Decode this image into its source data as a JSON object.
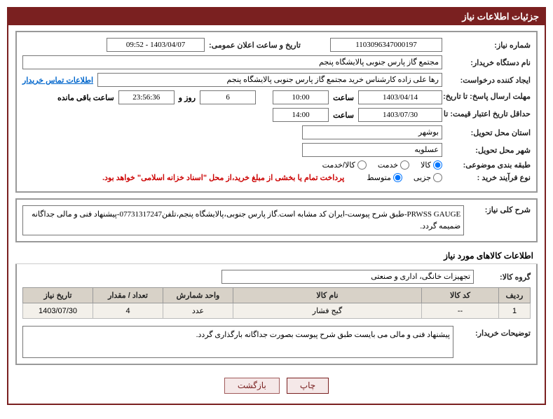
{
  "title": "جزئیات اطلاعات نیاز",
  "fields": {
    "need_no_label": "شماره نیاز:",
    "need_no": "1103096347000197",
    "announce_label": "تاریخ و ساعت اعلان عمومی:",
    "announce_value": "1403/04/07 - 09:52",
    "buyer_org_label": "نام دستگاه خریدار:",
    "buyer_org": "مجتمع گاز پارس جنوبی  پالایشگاه پنجم",
    "requester_label": "ایجاد کننده درخواست:",
    "requester": "رها علی زاده کارشناس خرید مجتمع گاز پارس جنوبی  پالایشگاه پنجم",
    "contact_link": "اطلاعات تماس خریدار",
    "deadline_label": "مهلت ارسال پاسخ: تا تاریخ:",
    "deadline_date": "1403/04/14",
    "hour_label": "ساعت",
    "deadline_hour": "10:00",
    "days_remain": "6",
    "days_remain_label": "روز و",
    "time_remain": "23:56:36",
    "time_remain_label": "ساعت باقی مانده",
    "validity_label": "حداقل تاریخ اعتبار قیمت: تا تاریخ:",
    "validity_date": "1403/07/30",
    "validity_hour": "14:00",
    "delivery_province_label": "استان محل تحویل:",
    "delivery_province": "بوشهر",
    "delivery_city_label": "شهر محل تحویل:",
    "delivery_city": "عسلویه",
    "category_label": "طبقه بندی موضوعی:",
    "cat_goods": "کالا",
    "cat_service": "خدمت",
    "cat_goods_service": "کالا/خدمت",
    "process_label": "نوع فرآیند خرید :",
    "proc_small": "جزیی",
    "proc_medium": "متوسط",
    "payment_note": "پرداخت تمام یا بخشی از مبلغ خرید،از محل \"اسناد خزانه اسلامی\" خواهد بود.",
    "summary_label": "شرح کلی نیاز:",
    "summary_text": "PRWSS GAUGE-طبق شرح پیوست-ایران کد مشابه است.گاز پارس جنوبی،پالایشگاه پنجم،تلفن07731317247-پیشنهاد فنی و مالی جداگانه ضمیمه گردد.",
    "goods_info_header": "اطلاعات کالاهای مورد نیاز",
    "goods_group_label": "گروه کالا:",
    "goods_group": "تجهیزات خانگی، اداری و صنعتی",
    "buyer_notes_label": "توضیحات خریدار:",
    "buyer_notes_text": "پیشنهاد فنی و مالی می بایست طبق شرح پیوست بصورت جداگانه بارگذاری گردد."
  },
  "table": {
    "headers": {
      "row": "ردیف",
      "code": "کد کالا",
      "name": "نام کالا",
      "unit": "واحد شمارش",
      "qty": "تعداد / مقدار",
      "date": "تاریخ نیاز"
    },
    "rows": [
      {
        "row": "1",
        "code": "--",
        "name": "گیج فشار",
        "unit": "عدد",
        "qty": "4",
        "date": "1403/07/30"
      }
    ]
  },
  "buttons": {
    "print": "چاپ",
    "back": "بازگشت"
  },
  "colors": {
    "primary": "#7a2020",
    "border_gray": "#999",
    "table_header_bg": "#d8d2c8",
    "table_row_bg": "#f3f0ea"
  },
  "watermark_text": "ParsTender.net"
}
